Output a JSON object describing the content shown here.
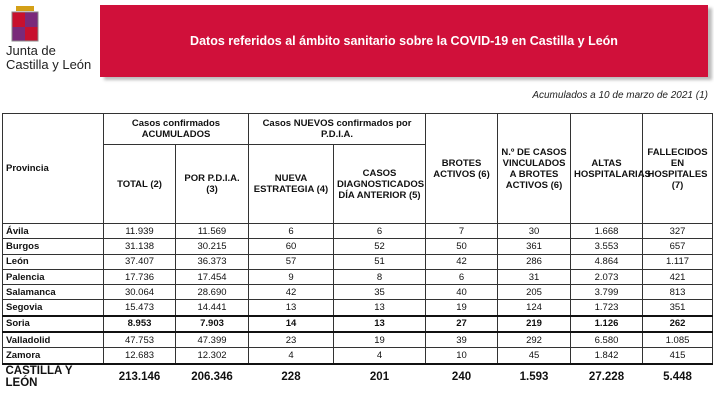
{
  "logo": {
    "line1": "Junta de",
    "line2": "Castilla y León"
  },
  "header": {
    "title": "Datos referidos al ámbito sanitario sobre la COVID-19 en Castilla y León"
  },
  "subtitle": "Acumulados a 10 de marzo de 2021 (1)",
  "table": {
    "group_headers": [
      "Casos confirmados ACUMULADOS",
      "Casos NUEVOS confirmados por P.D.I.A."
    ],
    "columns": [
      "Provincia",
      "TOTAL (2)",
      "POR P.D.I.A. (3)",
      "NUEVA ESTRATEGIA (4)",
      "CASOS DIAGNOSTICADOS DÍA ANTERIOR (5)",
      "BROTES ACTIVOS (6)",
      "N.º DE CASOS VINCULADOS A BROTES ACTIVOS (6)",
      "ALTAS HOSPITALARIAS",
      "FALLECIDOS EN HOSPITALES (7)"
    ],
    "rows": [
      [
        "Ávila",
        "11.939",
        "11.569",
        "6",
        "6",
        "7",
        "30",
        "1.668",
        "327"
      ],
      [
        "Burgos",
        "31.138",
        "30.215",
        "60",
        "52",
        "50",
        "361",
        "3.553",
        "657"
      ],
      [
        "León",
        "37.407",
        "36.373",
        "57",
        "51",
        "42",
        "286",
        "4.864",
        "1.117"
      ],
      [
        "Palencia",
        "17.736",
        "17.454",
        "9",
        "8",
        "6",
        "31",
        "2.073",
        "421"
      ],
      [
        "Salamanca",
        "30.064",
        "28.690",
        "42",
        "35",
        "40",
        "205",
        "3.799",
        "813"
      ],
      [
        "Segovia",
        "15.473",
        "14.441",
        "13",
        "13",
        "19",
        "124",
        "1.723",
        "351"
      ],
      [
        "Soria",
        "8.953",
        "7.903",
        "14",
        "13",
        "27",
        "219",
        "1.126",
        "262"
      ],
      [
        "Valladolid",
        "47.753",
        "47.399",
        "23",
        "19",
        "39",
        "292",
        "6.580",
        "1.085"
      ],
      [
        "Zamora",
        "12.683",
        "12.302",
        "4",
        "4",
        "10",
        "45",
        "1.842",
        "415"
      ]
    ],
    "total": [
      "CASTILLA Y LEÓN",
      "213.146",
      "206.346",
      "228",
      "201",
      "240",
      "1.593",
      "27.228",
      "5.448"
    ]
  }
}
